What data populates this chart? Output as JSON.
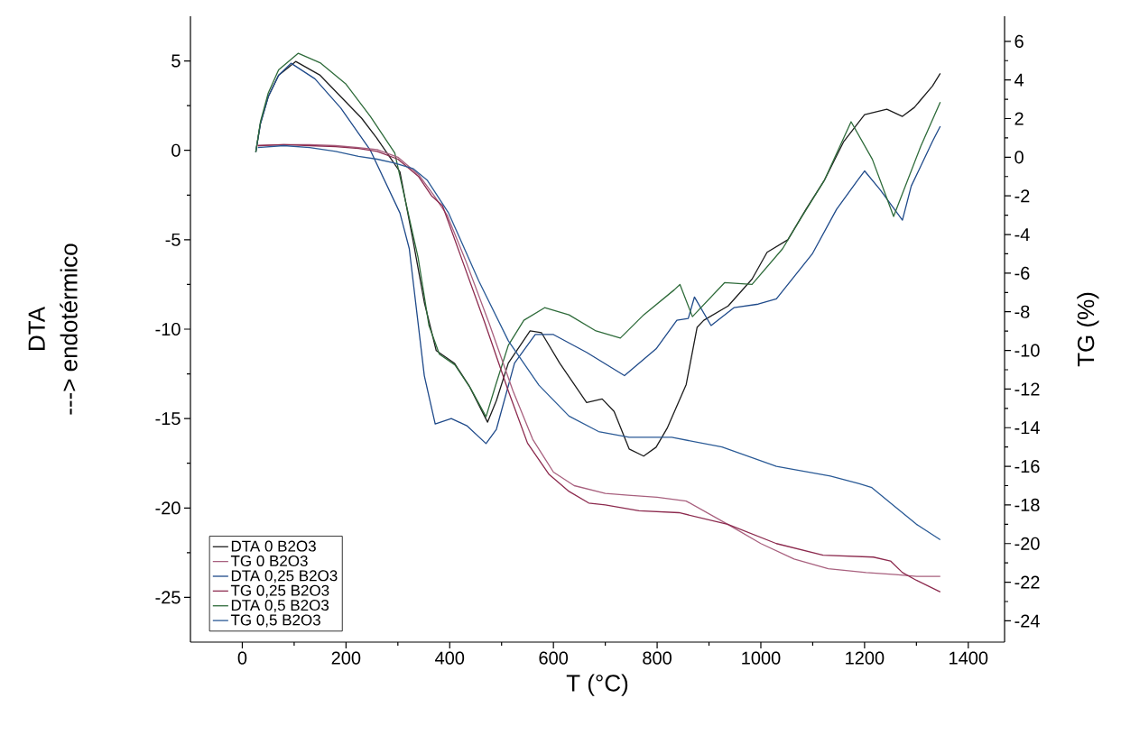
{
  "chart_data": {
    "type": "line",
    "xlabel": "T (°C)",
    "ylabel": "DTA",
    "y2label": "TG (%)",
    "annotations": [
      "---> endotérmico"
    ],
    "xlim": [
      -100,
      1470
    ],
    "xticks": [
      0,
      200,
      400,
      600,
      800,
      1000,
      1200,
      1400
    ],
    "ylim": [
      -27.5,
      7.5
    ],
    "yticks": [
      -25,
      -20,
      -15,
      -10,
      -5,
      0,
      5
    ],
    "y2lim": [
      -25.1,
      7.3
    ],
    "y2ticks": [
      -24,
      -22,
      -20,
      -18,
      -16,
      -14,
      -12,
      -10,
      -8,
      -6,
      -4,
      -2,
      0,
      2,
      4,
      6
    ],
    "legend": "bottom left",
    "grid": false,
    "marker": "none",
    "line_style": "solid",
    "series": [
      {
        "name": "DTA 0 B2O3",
        "color": "#1c1c1c",
        "x": [
          26,
          35,
          50,
          70,
          103,
          150,
          190,
          230,
          259,
          285,
          304,
          329,
          351,
          374,
          409,
          438,
          473,
          490,
          513,
          555,
          577,
          612,
          664,
          694,
          717,
          746,
          774,
          798,
          820,
          856,
          877,
          890,
          937,
          983,
          1012,
          1052,
          1087,
          1122,
          1160,
          1200,
          1243,
          1273,
          1296,
          1331,
          1346
        ],
        "values": [
          -0.1,
          1.5,
          3.0,
          4.2,
          4.97,
          4.2,
          3.0,
          1.8,
          0.7,
          -0.4,
          -1.2,
          -5.0,
          -8.5,
          -11.2,
          -11.9,
          -13.2,
          -15.2,
          -14.0,
          -11.9,
          -10.1,
          -10.2,
          -11.9,
          -14.1,
          -13.9,
          -14.6,
          -16.7,
          -17.1,
          -16.6,
          -15.5,
          -13.1,
          -9.9,
          -9.5,
          -8.7,
          -7.2,
          -5.7,
          -5.0,
          -3.3,
          -1.7,
          0.5,
          2.0,
          2.3,
          1.9,
          2.4,
          3.6,
          4.3
        ]
      },
      {
        "name": "TG 0 B2O3",
        "color": "#a8607e",
        "axis": "y2",
        "x": [
          30,
          80,
          130,
          180,
          224,
          260,
          300,
          340,
          370,
          395,
          430,
          476,
          522,
          560,
          600,
          640,
          700,
          744,
          800,
          856,
          936,
          1000,
          1064,
          1130,
          1203,
          1260,
          1300,
          1346
        ],
        "values": [
          0.6,
          0.65,
          0.65,
          0.6,
          0.5,
          0.4,
          0.0,
          -0.9,
          -2.0,
          -3.0,
          -5.3,
          -8.6,
          -12.1,
          -14.6,
          -16.3,
          -17.0,
          -17.4,
          -17.5,
          -17.6,
          -17.8,
          -19.0,
          -20.0,
          -20.8,
          -21.3,
          -21.5,
          -21.6,
          -21.7,
          -21.7
        ]
      },
      {
        "name": "DTA 0,25 B2O3",
        "color": "#1f4a8a",
        "x": [
          26,
          35,
          50,
          70,
          94,
          140,
          190,
          247,
          304,
          322,
          351,
          372,
          403,
          433,
          470,
          490,
          525,
          565,
          600,
          664,
          737,
          798,
          838,
          860,
          872,
          904,
          948,
          995,
          1030,
          1099,
          1146,
          1186,
          1200,
          1230,
          1273,
          1290,
          1331,
          1346
        ],
        "values": [
          -0.1,
          1.5,
          3.0,
          4.2,
          4.87,
          4.0,
          2.36,
          0.0,
          -3.5,
          -5.5,
          -12.6,
          -15.3,
          -15.0,
          -15.4,
          -16.4,
          -15.6,
          -11.9,
          -10.3,
          -10.3,
          -11.3,
          -12.6,
          -11.1,
          -9.5,
          -9.4,
          -8.2,
          -9.8,
          -8.8,
          -8.6,
          -8.3,
          -5.8,
          -3.3,
          -1.7,
          -1.15,
          -2.2,
          -3.9,
          -2.0,
          0.5,
          1.35
        ]
      },
      {
        "name": "TG 0,25 B2O3",
        "color": "#8c2a4e",
        "axis": "y2",
        "x": [
          30,
          80,
          130,
          180,
          224,
          260,
          300,
          340,
          365,
          386,
          421,
          468,
          513,
          550,
          591,
          630,
          668,
          700,
          765,
          842,
          936,
          1030,
          1120,
          1217,
          1250,
          1273,
          1300,
          1346
        ],
        "values": [
          0.6,
          0.65,
          0.6,
          0.55,
          0.45,
          0.3,
          -0.1,
          -1.0,
          -2.0,
          -2.5,
          -5.1,
          -8.6,
          -12.1,
          -14.8,
          -16.4,
          -17.3,
          -17.9,
          -18.0,
          -18.3,
          -18.4,
          -19.0,
          -20.0,
          -20.6,
          -20.7,
          -20.9,
          -21.5,
          -21.9,
          -22.5
        ]
      },
      {
        "name": "DTA 0,5 B2O3",
        "color": "#2e6b3a",
        "x": [
          26,
          35,
          50,
          70,
          108,
          150,
          200,
          247,
          294,
          339,
          360,
          380,
          410,
          440,
          470,
          490,
          513,
          543,
          583,
          630,
          682,
          729,
          774,
          833,
          844,
          868,
          930,
          983,
          1042,
          1077,
          1122,
          1174,
          1215,
          1256,
          1308,
          1346
        ],
        "values": [
          -0.1,
          1.6,
          3.2,
          4.5,
          5.43,
          4.9,
          3.7,
          1.9,
          -0.15,
          -6.0,
          -9.8,
          -11.4,
          -12.0,
          -13.3,
          -14.9,
          -13.0,
          -10.9,
          -9.5,
          -8.8,
          -9.2,
          -10.1,
          -10.5,
          -9.2,
          -7.8,
          -7.5,
          -9.3,
          -7.4,
          -7.5,
          -5.5,
          -3.8,
          -1.7,
          1.6,
          -0.5,
          -3.7,
          0.2,
          2.7
        ]
      },
      {
        "name": "TG 0,5 B2O3",
        "color": "#2a5a96",
        "axis": "y2",
        "x": [
          30,
          80,
          130,
          180,
          224,
          260,
          294,
          330,
          357,
          398,
          456,
          513,
          572,
          630,
          687,
          746,
          828,
          925,
          1030,
          1134,
          1190,
          1214,
          1259,
          1300,
          1346
        ],
        "values": [
          0.5,
          0.6,
          0.5,
          0.3,
          0.05,
          -0.1,
          -0.3,
          -0.6,
          -1.2,
          -2.9,
          -6.4,
          -9.5,
          -11.8,
          -13.4,
          -14.2,
          -14.5,
          -14.5,
          -15.0,
          -16.0,
          -16.5,
          -16.9,
          -17.1,
          -18.1,
          -19.0,
          -19.8
        ]
      }
    ]
  }
}
